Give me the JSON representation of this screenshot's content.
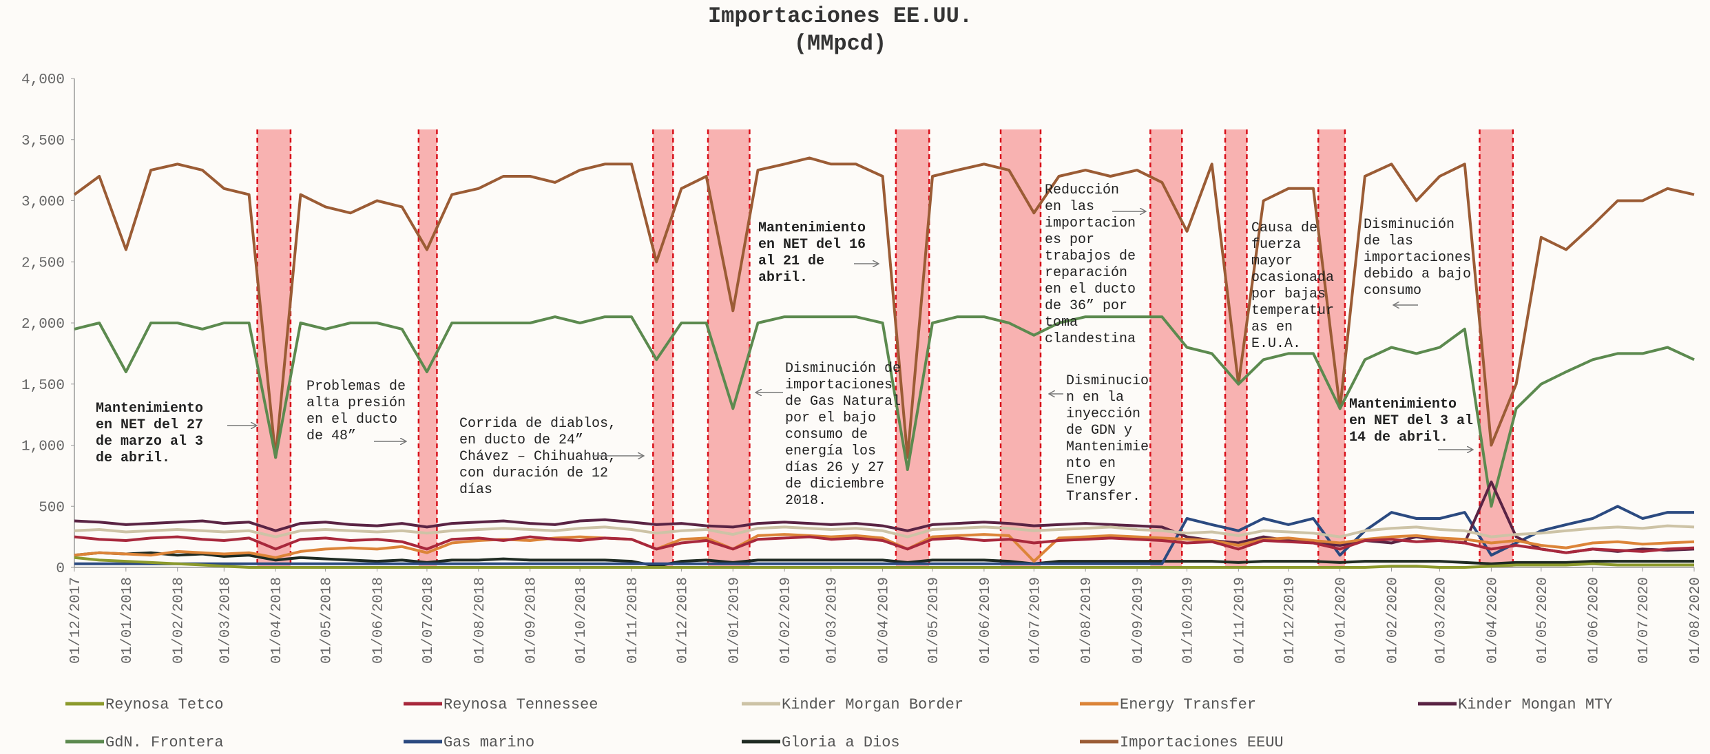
{
  "chart_data": {
    "type": "line",
    "title": "Importaciones EE.UU.",
    "subtitle": "(MMpcd)",
    "x": [
      "01/12/2017",
      "16/12/2017",
      "01/01/2018",
      "16/01/2018",
      "01/02/2018",
      "16/02/2018",
      "01/03/2018",
      "16/03/2018",
      "01/04/2018",
      "16/04/2018",
      "01/05/2018",
      "16/05/2018",
      "01/06/2018",
      "16/06/2018",
      "01/07/2018",
      "16/07/2018",
      "01/08/2018",
      "16/08/2018",
      "01/09/2018",
      "16/09/2018",
      "01/10/2018",
      "16/10/2018",
      "01/11/2018",
      "16/11/2018",
      "01/12/2018",
      "16/12/2018",
      "01/01/2019",
      "16/01/2019",
      "01/02/2019",
      "16/02/2019",
      "01/03/2019",
      "16/03/2019",
      "01/04/2019",
      "16/04/2019",
      "01/05/2019",
      "16/05/2019",
      "01/06/2019",
      "16/06/2019",
      "01/07/2019",
      "16/07/2019",
      "01/08/2019",
      "16/08/2019",
      "01/09/2019",
      "16/09/2019",
      "01/10/2019",
      "16/10/2019",
      "01/11/2019",
      "16/11/2019",
      "01/12/2019",
      "16/12/2019",
      "01/01/2020",
      "16/01/2020",
      "01/02/2020",
      "16/02/2020",
      "01/03/2020",
      "16/03/2020",
      "01/04/2020",
      "16/04/2020",
      "01/05/2020",
      "16/05/2020",
      "01/06/2020",
      "16/06/2020",
      "01/07/2020",
      "16/07/2020",
      "01/08/2020"
    ],
    "xlim": [
      "01/12/2017",
      "01/08/2020"
    ],
    "xticks": [
      "01/12/2017",
      "01/01/2018",
      "01/02/2018",
      "01/03/2018",
      "01/04/2018",
      "01/05/2018",
      "01/06/2018",
      "01/07/2018",
      "01/08/2018",
      "01/09/2018",
      "01/10/2018",
      "01/11/2018",
      "01/12/2018",
      "01/01/2019",
      "01/02/2019",
      "01/03/2019",
      "01/04/2019",
      "01/05/2019",
      "01/06/2019",
      "01/07/2019",
      "01/08/2019",
      "01/09/2019",
      "01/10/2019",
      "01/11/2019",
      "01/12/2019",
      "01/01/2020",
      "01/02/2020",
      "01/03/2020",
      "01/04/2020",
      "01/05/2020",
      "01/06/2020",
      "01/07/2020",
      "01/08/2020"
    ],
    "ylim": [
      0,
      4000
    ],
    "yticks": [
      0,
      500,
      {
        "value": 1000,
        "label": "1,000"
      },
      {
        "value": 1500,
        "label": "1,500"
      },
      {
        "value": 2000,
        "label": "2,000"
      },
      {
        "value": 2500,
        "label": "2,500"
      },
      {
        "value": 3000,
        "label": "3,000"
      },
      {
        "value": 3500,
        "label": "3,500"
      },
      {
        "value": 4000,
        "label": "4,000"
      }
    ],
    "grid": false,
    "series": [
      {
        "name": "Reynosa Tetco",
        "color": "#8c9a2c",
        "values": [
          80,
          60,
          50,
          40,
          30,
          20,
          10,
          0,
          0,
          0,
          0,
          0,
          0,
          0,
          0,
          0,
          0,
          0,
          0,
          0,
          0,
          0,
          0,
          0,
          0,
          0,
          0,
          0,
          0,
          0,
          0,
          0,
          0,
          0,
          0,
          0,
          0,
          0,
          0,
          0,
          0,
          0,
          0,
          0,
          0,
          0,
          0,
          0,
          0,
          0,
          0,
          0,
          10,
          10,
          0,
          0,
          10,
          20,
          20,
          20,
          30,
          20,
          20,
          20,
          20
        ]
      },
      {
        "name": "Reynosa Tennessee",
        "color": "#a8283c",
        "values": [
          250,
          230,
          220,
          240,
          250,
          230,
          220,
          240,
          150,
          230,
          240,
          220,
          230,
          210,
          150,
          230,
          240,
          220,
          250,
          230,
          220,
          240,
          230,
          150,
          200,
          220,
          150,
          230,
          240,
          250,
          230,
          240,
          220,
          150,
          230,
          240,
          220,
          230,
          200,
          220,
          230,
          240,
          230,
          220,
          200,
          210,
          150,
          220,
          210,
          200,
          150,
          220,
          230,
          210,
          220,
          200,
          150,
          180,
          150,
          120,
          150,
          140,
          130,
          150,
          160
        ]
      },
      {
        "name": "Kinder Morgan Border",
        "color": "#cdc3a6",
        "values": [
          300,
          310,
          290,
          300,
          310,
          300,
          290,
          300,
          250,
          300,
          310,
          300,
          290,
          300,
          280,
          300,
          310,
          320,
          310,
          300,
          320,
          330,
          310,
          280,
          300,
          310,
          270,
          320,
          330,
          320,
          310,
          320,
          300,
          250,
          310,
          320,
          330,
          320,
          300,
          310,
          320,
          330,
          310,
          300,
          280,
          290,
          260,
          300,
          290,
          280,
          250,
          300,
          320,
          330,
          310,
          300,
          250,
          270,
          280,
          300,
          320,
          330,
          320,
          340,
          330
        ]
      },
      {
        "name": "Energy Transfer",
        "color": "#dc8438",
        "values": [
          100,
          120,
          110,
          100,
          130,
          120,
          110,
          120,
          80,
          130,
          150,
          160,
          150,
          170,
          120,
          200,
          220,
          230,
          220,
          240,
          250,
          240,
          230,
          150,
          230,
          240,
          150,
          260,
          270,
          260,
          250,
          260,
          240,
          150,
          250,
          260,
          270,
          260,
          50,
          240,
          250,
          260,
          250,
          240,
          230,
          220,
          180,
          230,
          240,
          220,
          200,
          230,
          250,
          260,
          240,
          230,
          200,
          220,
          180,
          160,
          200,
          210,
          190,
          200,
          210
        ]
      },
      {
        "name": "Kinder Mongan MTY",
        "color": "#5a2444",
        "values": [
          380,
          370,
          350,
          360,
          370,
          380,
          360,
          370,
          300,
          360,
          370,
          350,
          340,
          360,
          330,
          360,
          370,
          380,
          360,
          350,
          380,
          390,
          370,
          350,
          360,
          340,
          330,
          360,
          370,
          360,
          350,
          360,
          340,
          300,
          350,
          360,
          370,
          360,
          340,
          350,
          360,
          350,
          340,
          330,
          250,
          220,
          200,
          250,
          220,
          200,
          180,
          220,
          200,
          250,
          220,
          200,
          700,
          250,
          150,
          120,
          150,
          130,
          150,
          140,
          150
        ]
      },
      {
        "name": "GdN. Frontera",
        "color": "#5c8a4f",
        "values": [
          1950,
          2000,
          1600,
          2000,
          2000,
          1950,
          2000,
          2000,
          900,
          2000,
          1950,
          2000,
          2000,
          1950,
          1600,
          2000,
          2000,
          2000,
          2000,
          2050,
          2000,
          2050,
          2050,
          1700,
          2000,
          2000,
          1300,
          2000,
          2050,
          2050,
          2050,
          2050,
          2000,
          800,
          2000,
          2050,
          2050,
          2000,
          1900,
          2000,
          2050,
          2050,
          2050,
          2050,
          1800,
          1750,
          1500,
          1700,
          1750,
          1750,
          1300,
          1700,
          1800,
          1750,
          1800,
          1950,
          500,
          1300,
          1500,
          1600,
          1700,
          1750,
          1750,
          1800,
          1700
        ]
      },
      {
        "name": "Gas marino",
        "color": "#2b4a80",
        "values": [
          30,
          30,
          30,
          30,
          30,
          30,
          30,
          30,
          30,
          30,
          30,
          30,
          30,
          30,
          30,
          30,
          30,
          30,
          30,
          30,
          30,
          30,
          30,
          30,
          30,
          30,
          30,
          30,
          30,
          30,
          30,
          30,
          30,
          30,
          30,
          30,
          30,
          30,
          30,
          30,
          30,
          30,
          30,
          30,
          400,
          350,
          300,
          400,
          350,
          400,
          100,
          300,
          450,
          400,
          400,
          450,
          100,
          200,
          300,
          350,
          400,
          500,
          400,
          450,
          450
        ]
      },
      {
        "name": "Gloria a Dios",
        "color": "#1f2b22",
        "values": [
          100,
          120,
          110,
          120,
          100,
          110,
          90,
          100,
          60,
          80,
          70,
          60,
          50,
          60,
          40,
          60,
          60,
          70,
          60,
          60,
          60,
          60,
          50,
          10,
          50,
          60,
          40,
          60,
          60,
          60,
          60,
          60,
          60,
          40,
          60,
          60,
          60,
          50,
          30,
          50,
          50,
          50,
          50,
          50,
          50,
          50,
          40,
          50,
          50,
          50,
          40,
          50,
          50,
          50,
          50,
          40,
          30,
          40,
          40,
          40,
          50,
          50,
          50,
          50,
          50
        ]
      },
      {
        "name": "Importaciones EEUU",
        "color": "#9b5c35",
        "values": [
          3050,
          3200,
          2600,
          3250,
          3300,
          3250,
          3100,
          3050,
          900,
          3050,
          2950,
          2900,
          3000,
          2950,
          2600,
          3050,
          3100,
          3200,
          3200,
          3150,
          3250,
          3300,
          3300,
          2500,
          3100,
          3200,
          2100,
          3250,
          3300,
          3350,
          3300,
          3300,
          3200,
          900,
          3200,
          3250,
          3300,
          3250,
          2900,
          3200,
          3250,
          3200,
          3250,
          3150,
          2750,
          3300,
          1500,
          3000,
          3100,
          3100,
          1300,
          3200,
          3300,
          3000,
          3200,
          3300,
          1000,
          1500,
          2700,
          2600,
          2800,
          3000,
          3000,
          3100,
          3050
        ]
      }
    ],
    "shaded_periods": [
      {
        "start": "21/03/2018",
        "end": "10/04/2018"
      },
      {
        "start": "26/06/2018",
        "end": "07/07/2018"
      },
      {
        "start": "14/11/2018",
        "end": "26/11/2018"
      },
      {
        "start": "17/12/2018",
        "end": "11/01/2019"
      },
      {
        "start": "09/04/2019",
        "end": "29/04/2019"
      },
      {
        "start": "11/06/2019",
        "end": "05/07/2019"
      },
      {
        "start": "09/09/2019",
        "end": "28/09/2019"
      },
      {
        "start": "24/10/2019",
        "end": "06/11/2019"
      },
      {
        "start": "19/12/2019",
        "end": "04/01/2020"
      },
      {
        "start": "25/03/2020",
        "end": "14/04/2020"
      }
    ],
    "annotations": [
      [
        "Mantenimiento",
        "en NET del 27",
        "de marzo al 3",
        "de abril."
      ],
      [
        "Problemas de",
        "alta presión",
        "en el ducto",
        "de 48”"
      ],
      [
        "Corrida de diablos,",
        "en ducto de 24”",
        "Chávez – Chihuahua,",
        "con duración de 12",
        "días"
      ],
      [
        "Mantenimiento",
        "en NET del 16",
        "al 21 de",
        "abril."
      ],
      [
        "Disminución de",
        "importaciones",
        "de Gas Natural",
        "por el bajo",
        "consumo de",
        "energía los",
        "días 26 y 27",
        "de diciembre",
        "2018."
      ],
      [
        "Reducción",
        "en las",
        "importacion",
        "es por",
        "trabajos de",
        "reparación",
        "en el ducto",
        "de 36” por",
        "toma",
        "clandestina"
      ],
      [
        "Disminucio",
        "n en la",
        "inyección",
        "de GDN y",
        "Mantenimie",
        "nto en",
        "Energy",
        "Transfer."
      ],
      [
        "Causa de",
        "fuerza",
        "mayor",
        "ocasionada",
        "por bajas",
        "temperatur",
        "as en",
        "E.U.A."
      ],
      [
        "Disminución",
        "de las",
        "importaciones",
        "debido a bajo",
        "consumo"
      ],
      [
        "Mantenimiento",
        "en NET del 3 al",
        "14 de abril."
      ]
    ]
  }
}
